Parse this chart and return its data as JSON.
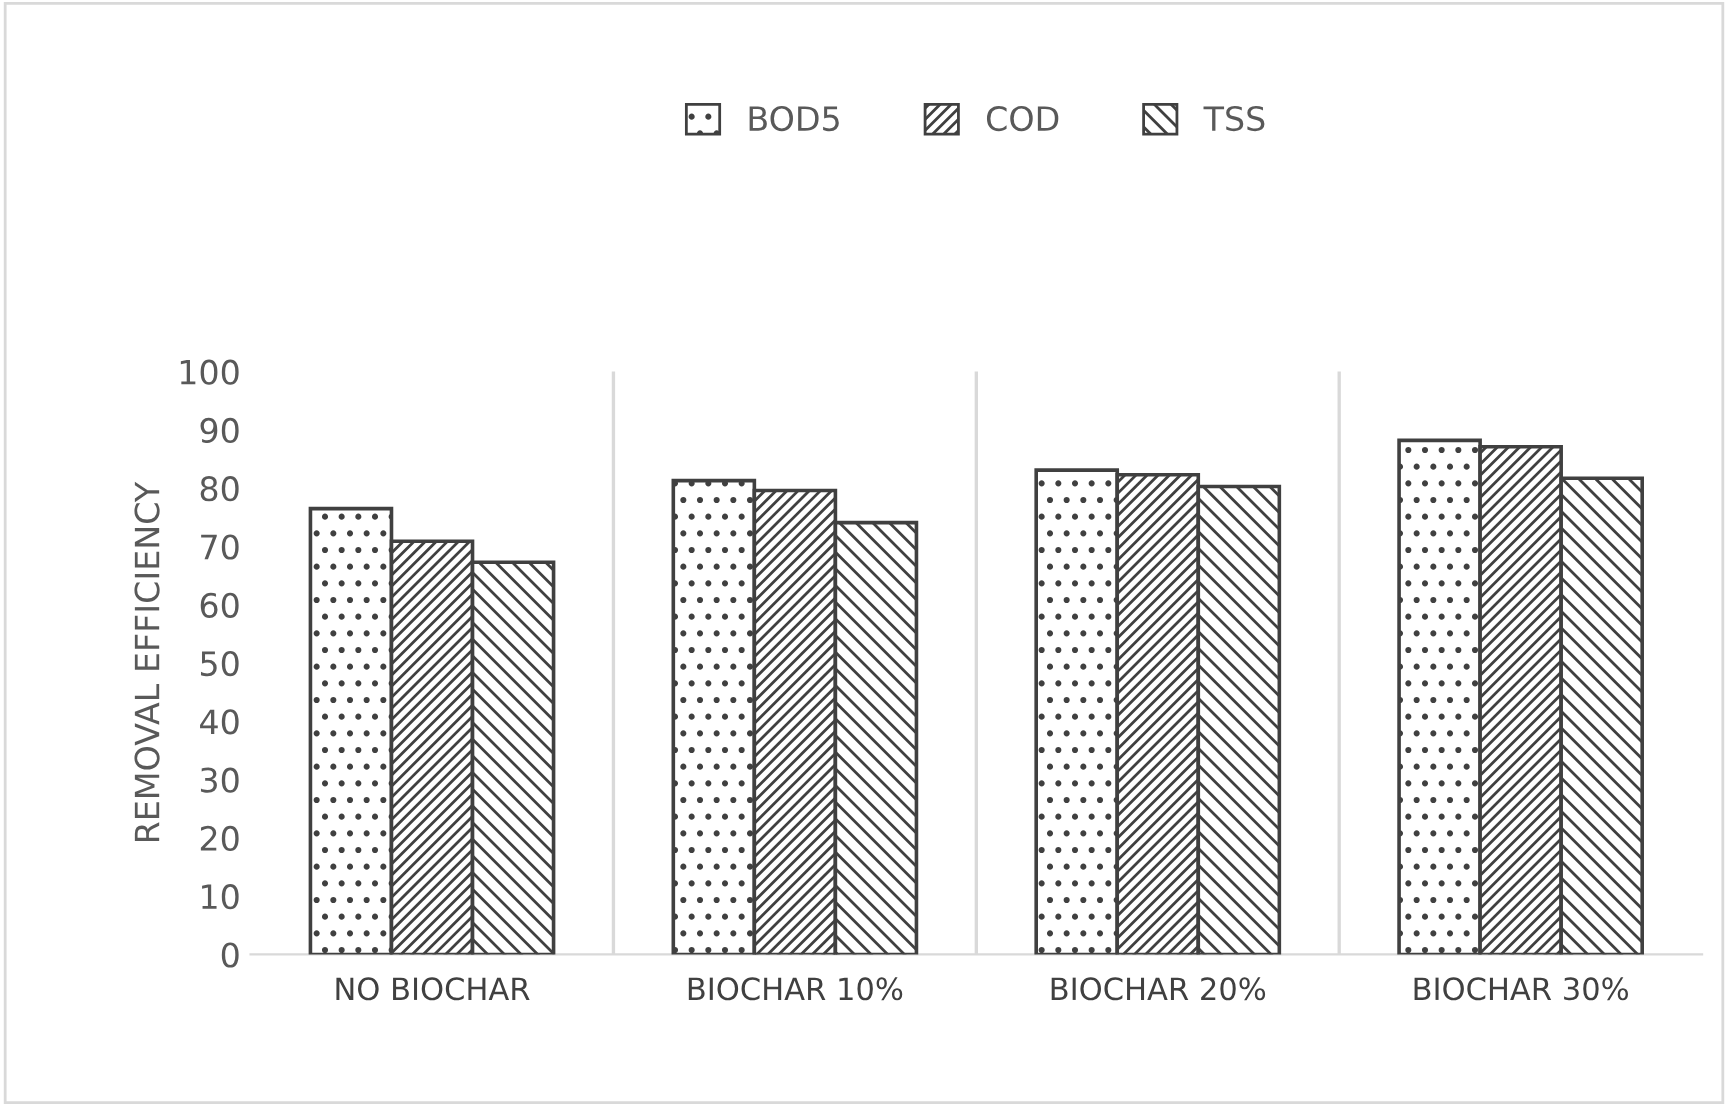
{
  "chart_data": {
    "type": "bar",
    "ylabel": "REMOVAL EFFICIENCY",
    "categories": [
      "NO BIOCHAR",
      "BIOCHAR 10%",
      "BIOCHAR 20%",
      "BIOCHAR 30%"
    ],
    "series": [
      {
        "name": "BOD5",
        "color": "#404040",
        "values": [
          76.5,
          81.3,
          83.1,
          88.2
        ]
      },
      {
        "name": "COD",
        "color": "#404040",
        "values": [
          70.9,
          79.6,
          82.3,
          87.1
        ]
      },
      {
        "name": "TSS",
        "color": "#404040",
        "values": [
          67.3,
          74.1,
          80.3,
          81.7
        ]
      }
    ],
    "ylim": [
      0,
      100
    ],
    "yticks": [
      0,
      10,
      20,
      30,
      40,
      50,
      60,
      70,
      80,
      90,
      100
    ],
    "grid": "x",
    "legend": "top"
  }
}
